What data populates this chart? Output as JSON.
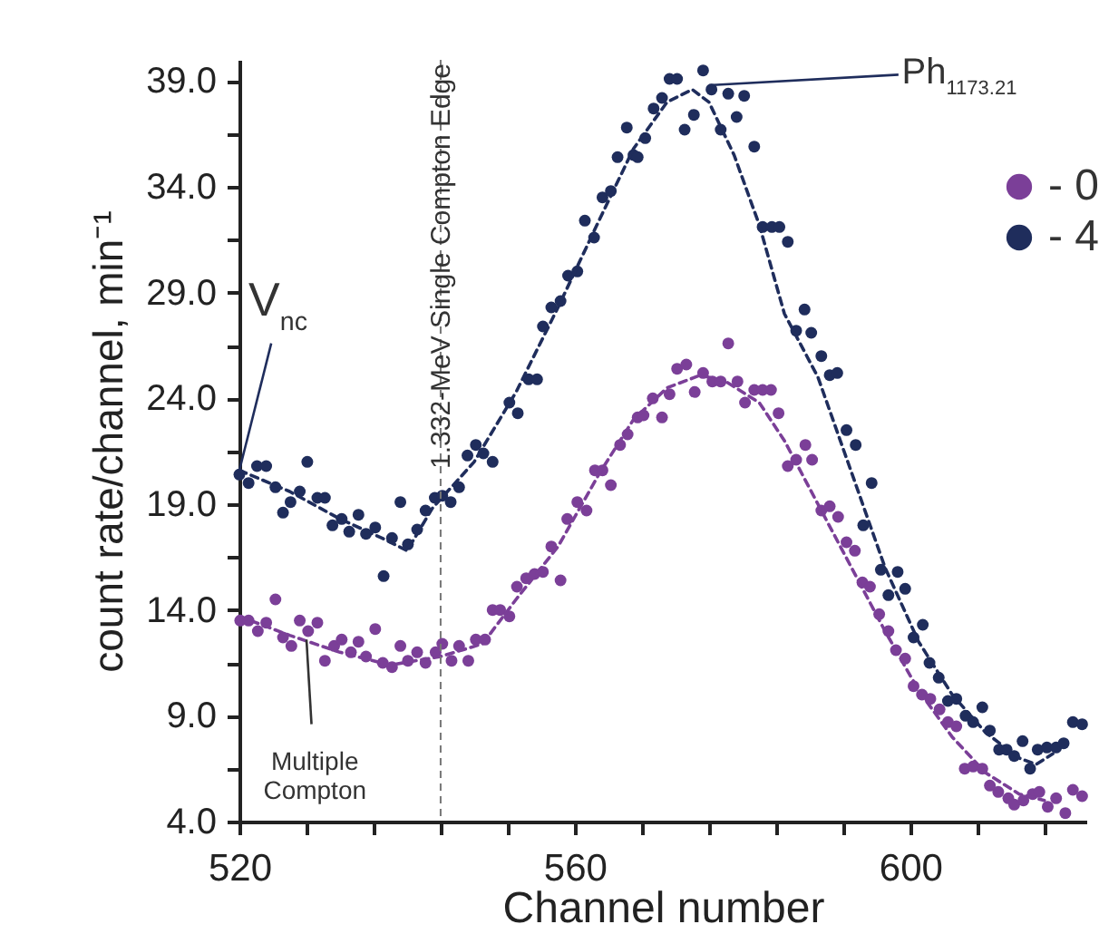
{
  "chart_data": {
    "type": "scatter",
    "xlabel": "Channel  number",
    "ylabel": "count rate/channel, min⁻¹",
    "xlim": [
      520,
      621
    ],
    "ylim": [
      4,
      40
    ],
    "xticks": [
      520,
      {
        "value": 528,
        "label": null
      },
      {
        "value": 536,
        "label": null
      },
      {
        "value": 544,
        "label": null
      },
      {
        "value": 552,
        "label": null
      },
      560,
      {
        "value": 568,
        "label": null
      },
      {
        "value": 576,
        "label": null
      },
      {
        "value": 584,
        "label": null
      },
      {
        "value": 592,
        "label": null
      },
      600,
      {
        "value": 608,
        "label": null
      },
      {
        "value": 616,
        "label": null
      }
    ],
    "yticks": [
      {
        "value": 4,
        "label": "4.0"
      },
      {
        "value": 6.5,
        "label": null
      },
      {
        "value": 9,
        "label": "9.0"
      },
      {
        "value": 11.5,
        "label": null
      },
      {
        "value": 14,
        "label": "14.0"
      },
      {
        "value": 16.5,
        "label": null
      },
      {
        "value": 19,
        "label": "19.0"
      },
      {
        "value": 21.5,
        "label": null
      },
      {
        "value": 24,
        "label": "24.0"
      },
      {
        "value": 26.5,
        "label": null
      },
      {
        "value": 29,
        "label": "29.0"
      },
      {
        "value": 31.5,
        "label": null
      },
      {
        "value": 34,
        "label": "34.0"
      },
      {
        "value": 36.5,
        "label": null
      },
      {
        "value": 39,
        "label": "39.0"
      }
    ],
    "grid": false,
    "legend": "top right",
    "marker": "circle",
    "series": [
      {
        "name": "- 0",
        "color": "#7b3f98",
        "x": [
          520.1,
          521.1,
          522.2,
          523.2,
          524.3,
          525.2,
          526.2,
          527.2,
          528.2,
          529.3,
          530.2,
          531.3,
          532.2,
          533.3,
          534.2,
          535.1,
          536.2,
          537.1,
          538.2,
          539.2,
          540.1,
          541.2,
          542.2,
          543.4,
          544.2,
          545.3,
          546.2,
          547.3,
          548.2,
          549.3,
          550.2,
          551.1,
          552.2,
          553.1,
          554.2,
          555.2,
          556.2,
          557.2,
          558.3,
          559.1,
          560.3,
          561.4,
          562.4,
          563.3,
          564.3,
          565.4,
          566.3,
          567.5,
          568.2,
          569.3,
          570.4,
          571.3,
          572.2,
          573.3,
          574.3,
          575.3,
          576.4,
          577.4,
          578.3,
          579.4,
          580.3,
          581.4,
          582.4,
          583.4,
          584.3,
          585.4,
          586.4,
          587.5,
          588.3,
          589.4,
          590.4,
          591.4,
          592.4,
          593.4,
          594.3,
          595.2,
          596.3,
          597.4,
          598.3,
          599.4,
          600.4,
          601.4,
          602.4,
          603.5,
          604.5,
          605.5,
          606.5,
          607.5,
          608.6,
          609.5,
          610.5,
          611.7,
          612.4,
          613.5,
          614.6,
          615.4,
          616.4,
          617.4,
          618.5,
          619.4,
          620.5
        ],
        "values": [
          13.5,
          13.5,
          13.0,
          13.4,
          14.5,
          12.7,
          12.3,
          13.5,
          13.0,
          13.4,
          11.6,
          12.3,
          12.6,
          12.0,
          12.5,
          11.8,
          13.1,
          11.5,
          11.3,
          12.3,
          11.6,
          12.0,
          11.5,
          12.0,
          12.4,
          11.6,
          12.3,
          11.6,
          12.6,
          12.6,
          14.0,
          14.0,
          13.7,
          15.1,
          15.5,
          15.7,
          15.8,
          17.0,
          15.4,
          18.3,
          19.1,
          18.7,
          20.6,
          20.6,
          19.9,
          21.8,
          22.3,
          23.1,
          23.2,
          24.0,
          23.1,
          24.2,
          25.4,
          25.6,
          24.3,
          25.2,
          24.8,
          24.8,
          26.6,
          24.8,
          23.8,
          24.4,
          24.4,
          24.4,
          23.3,
          20.8,
          21.1,
          21.8,
          21.1,
          18.7,
          18.9,
          18.4,
          17.2,
          16.8,
          15.3,
          15.1,
          13.8,
          13.0,
          12.1,
          11.7,
          10.4,
          10.0,
          9.8,
          9.3,
          8.7,
          8.5,
          6.5,
          6.6,
          6.5,
          5.7,
          5.4,
          5.1,
          4.8,
          5.0,
          5.3,
          5.4,
          4.7,
          5.1,
          4.4,
          5.5,
          5.2
        ]
      },
      {
        "name": "- 4",
        "color": "#1f2d5c",
        "x": [
          520.0,
          521.1,
          522.1,
          523.2,
          524.3,
          525.2,
          526.1,
          527.2,
          528.1,
          529.3,
          530.2,
          531.1,
          532.2,
          533.1,
          534.2,
          535.1,
          536.2,
          537.2,
          538.2,
          539.2,
          540.1,
          541.2,
          542.2,
          543.3,
          544.2,
          545.2,
          546.2,
          547.2,
          548.2,
          549.1,
          550.2,
          552.2,
          553.2,
          554.5,
          555.5,
          556.2,
          557.2,
          558.3,
          559.2,
          560.3,
          561.2,
          562.3,
          563.3,
          564.3,
          565.1,
          566.2,
          567.0,
          567.5,
          568.4,
          569.4,
          570.4,
          571.3,
          572.2,
          573.1,
          574.2,
          575.3,
          576.3,
          577.4,
          578.3,
          579.3,
          580.2,
          581.4,
          582.4,
          583.5,
          584.4,
          585.4,
          586.4,
          587.4,
          588.2,
          589.4,
          590.4,
          591.3,
          592.4,
          593.5,
          594.4,
          595.4,
          596.5,
          597.4,
          598.5,
          599.4,
          600.4,
          601.5,
          602.3,
          603.4,
          604.5,
          605.5,
          606.6,
          607.5,
          608.6,
          609.5,
          610.6,
          611.5,
          612.4,
          613.4,
          614.3,
          615.2,
          616.3,
          617.4,
          618.3,
          619.4,
          620.5
        ],
        "values": [
          20.4,
          20.0,
          20.8,
          20.8,
          19.8,
          18.6,
          19.1,
          19.6,
          21.0,
          19.3,
          19.3,
          18.0,
          18.3,
          17.7,
          18.5,
          17.6,
          17.9,
          15.6,
          17.4,
          19.1,
          17.1,
          17.8,
          18.7,
          19.3,
          19.4,
          19.1,
          19.8,
          21.3,
          21.8,
          21.4,
          21.0,
          23.8,
          23.3,
          24.9,
          24.9,
          27.4,
          28.3,
          28.6,
          29.8,
          30.0,
          32.4,
          31.6,
          33.5,
          33.8,
          35.4,
          36.8,
          35.5,
          35.4,
          36.3,
          37.7,
          38.2,
          39.1,
          39.1,
          36.7,
          37.4,
          39.5,
          38.6,
          36.7,
          38.4,
          37.3,
          38.3,
          35.9,
          32.1,
          32.1,
          32.1,
          31.4,
          27.2,
          28.2,
          27.1,
          26.0,
          25.1,
          25.2,
          22.5,
          21.8,
          18.0,
          20.0,
          15.9,
          14.7,
          15.8,
          15.0,
          12.7,
          13.3,
          11.5,
          10.8,
          9.7,
          9.8,
          9.0,
          8.7,
          9.4,
          8.3,
          7.4,
          7.4,
          7.1,
          7.8,
          6.5,
          7.4,
          7.5,
          7.5,
          7.7,
          8.7,
          8.6
        ]
      },
      {
        "type": "line",
        "color": "#7b3f98",
        "line_style": "dashed",
        "marker": "none",
        "x": [
          520,
          526,
          532,
          538,
          544,
          549,
          553,
          558,
          563,
          567,
          571,
          575,
          578,
          582,
          585,
          589,
          593,
          597,
          601,
          605,
          609,
          613,
          616
        ],
        "values": [
          13.7,
          12.8,
          12.0,
          11.4,
          11.8,
          12.4,
          14.5,
          17.0,
          20.5,
          23.0,
          24.5,
          25.1,
          24.8,
          23.8,
          22.0,
          19.0,
          16.0,
          13.0,
          10.2,
          8.0,
          6.3,
          5.3,
          5.0
        ]
      },
      {
        "type": "line",
        "color": "#1f2d5c",
        "line_style": "dashed",
        "marker": "none",
        "x": [
          520,
          526,
          532,
          537,
          540,
          543,
          548,
          553,
          558,
          563,
          567,
          571,
          574,
          576,
          579,
          582,
          585,
          589,
          593,
          597,
          601,
          605,
          609,
          613,
          615,
          617
        ],
        "values": [
          20.6,
          19.6,
          18.3,
          17.4,
          16.8,
          18.8,
          21.0,
          24.3,
          28.3,
          32.5,
          35.8,
          38.0,
          38.6,
          38.0,
          35.5,
          32.2,
          28.0,
          25.0,
          20.5,
          16.0,
          12.5,
          10.0,
          8.2,
          7.0,
          6.7,
          7.2
        ]
      }
    ],
    "ref_lines": [
      {
        "axis": "x",
        "value": 544,
        "label": "1.332-MeV Single Compton Edge",
        "color": "#777777",
        "line_style": "dashed"
      }
    ],
    "annotations": [
      {
        "text": "V$_{nc}$",
        "x": 520,
        "y": 20.6
      },
      {
        "text": "Multiple Compton",
        "x": 528,
        "y": 12.6
      },
      {
        "text": "Ph$_{1173.21}$",
        "x": 576,
        "y": 38.8
      }
    ]
  }
}
